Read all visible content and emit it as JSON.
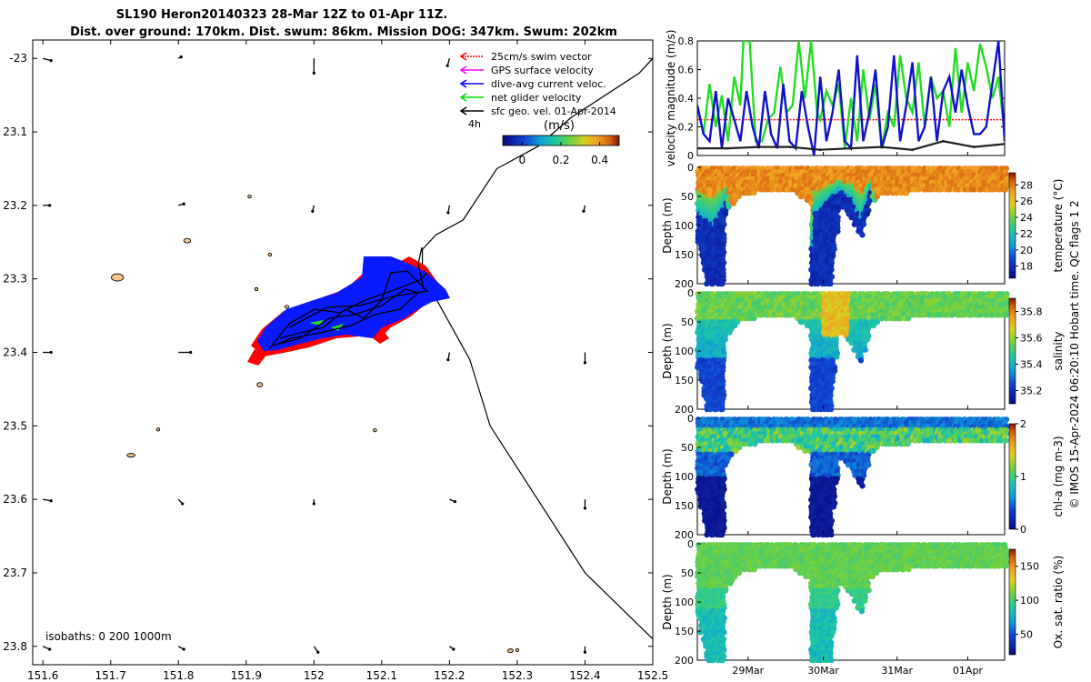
{
  "title": {
    "line1": "SL190 Heron20140323 28-Mar 12Z to 01-Apr 11Z.",
    "line2": "Dist. over ground: 170km. Dist. swum: 86km. Mission DOG: 347km. Swum: 202km"
  },
  "side_text": "© IMOS 15-Apr-2024 06:20:10 Hobart time. QC flags 1  2",
  "colors": {
    "swim": "#ff0000",
    "gps": "#ff00ff",
    "dive": "#0000ff",
    "net": "#00dd00",
    "sfc": "#000000",
    "land": "#f5c58a"
  },
  "chart_data": [
    {
      "type": "map",
      "name": "track-map",
      "xlim": [
        151.585,
        152.5
      ],
      "ylim": [
        -23.825,
        -22.975
      ],
      "x_ticks": [
        151.6,
        151.7,
        151.8,
        151.9,
        152,
        152.1,
        152.2,
        152.3,
        152.4,
        152.5
      ],
      "x_tick_labels": [
        "151.6",
        "151.7",
        "151.8",
        "151.9",
        "152",
        "152.1",
        "152.2",
        "152.3",
        "152.4",
        "152.5"
      ],
      "y_ticks": [
        -23,
        -23.1,
        -23.2,
        -23.3,
        -23.4,
        -23.5,
        -23.6,
        -23.7,
        -23.8
      ],
      "y_tick_labels": [
        "-23",
        "23.1",
        "23.2",
        "23.3",
        "23.4",
        "23.5",
        "23.6",
        "23.7",
        "23.8"
      ],
      "legend": [
        {
          "label": "25cm/s swim vector",
          "color": "#ff0000"
        },
        {
          "label": "GPS surface velocity",
          "color": "#ff00ff"
        },
        {
          "label": "dive-avg current veloc.",
          "color": "#0000ff"
        },
        {
          "label": "net glider velocity",
          "color": "#00dd00"
        },
        {
          "label": "sfc geo. vel. 01-Apr-2014",
          "color": "#000000"
        }
      ],
      "legend_note": "4h",
      "colorbar": {
        "title": "(m/s)",
        "ticks": [
          0,
          0.2,
          0.4
        ],
        "tick_labels": [
          "0",
          "0.2",
          "0.4"
        ],
        "range": [
          -0.1,
          0.5
        ]
      },
      "isobath_text": "isobaths: 0   200  1000m",
      "track_center": {
        "lon": 152.05,
        "lat": -23.35
      },
      "isobath_line": [
        {
          "lon": 152.5,
          "lat": -23.0
        },
        {
          "lon": 152.48,
          "lat": -23.02
        },
        {
          "lon": 152.38,
          "lat": -23.08
        },
        {
          "lon": 152.33,
          "lat": -23.12
        },
        {
          "lon": 152.27,
          "lat": -23.15
        },
        {
          "lon": 152.22,
          "lat": -23.22
        },
        {
          "lon": 152.18,
          "lat": -23.24
        },
        {
          "lon": 152.16,
          "lat": -23.26
        },
        {
          "lon": 152.16,
          "lat": -23.28
        },
        {
          "lon": 152.17,
          "lat": -23.31
        },
        {
          "lon": 152.2,
          "lat": -23.36
        },
        {
          "lon": 152.23,
          "lat": -23.41
        },
        {
          "lon": 152.26,
          "lat": -23.5
        },
        {
          "lon": 152.33,
          "lat": -23.6
        },
        {
          "lon": 152.4,
          "lat": -23.7
        },
        {
          "lon": 152.5,
          "lat": -23.79
        }
      ],
      "reefs": [
        {
          "lon": 151.71,
          "lat": -23.298,
          "w": 0.018,
          "h": 0.01
        },
        {
          "lon": 151.813,
          "lat": -23.248,
          "w": 0.01,
          "h": 0.006
        },
        {
          "lon": 151.73,
          "lat": -23.54,
          "w": 0.012,
          "h": 0.005
        },
        {
          "lon": 151.92,
          "lat": -23.444,
          "w": 0.008,
          "h": 0.006
        },
        {
          "lon": 152.29,
          "lat": -23.806,
          "w": 0.008,
          "h": 0.005
        },
        {
          "lon": 151.905,
          "lat": -23.188,
          "w": 0.004,
          "h": 0.004
        },
        {
          "lon": 151.935,
          "lat": -23.267,
          "w": 0.004,
          "h": 0.004
        },
        {
          "lon": 151.915,
          "lat": -23.314,
          "w": 0.004,
          "h": 0.004
        },
        {
          "lon": 152.09,
          "lat": -23.506,
          "w": 0.005,
          "h": 0.004
        },
        {
          "lon": 151.77,
          "lat": -23.505,
          "w": 0.004,
          "h": 0.004
        },
        {
          "lon": 152.057,
          "lat": -23.314,
          "w": 0.004,
          "h": 0.004
        },
        {
          "lon": 152.3,
          "lat": -23.805,
          "w": 0.004,
          "h": 0.004
        },
        {
          "lon": 151.96,
          "lat": -23.338,
          "w": 0.006,
          "h": 0.004
        }
      ],
      "geo_vectors": [
        {
          "lon": 151.6,
          "lat": -23.0,
          "u": 0.012,
          "v": -0.003
        },
        {
          "lon": 151.8,
          "lat": -23.0,
          "u": 0.004,
          "v": 0.002
        },
        {
          "lon": 152.0,
          "lat": -23.0,
          "u": 0.0,
          "v": -0.02
        },
        {
          "lon": 152.2,
          "lat": -23.0,
          "u": -0.003,
          "v": -0.01
        },
        {
          "lon": 151.6,
          "lat": -23.2,
          "u": 0.01,
          "v": 0.0
        },
        {
          "lon": 151.8,
          "lat": -23.2,
          "u": 0.008,
          "v": 0.002
        },
        {
          "lon": 152.0,
          "lat": -23.2,
          "u": -0.002,
          "v": -0.008
        },
        {
          "lon": 152.2,
          "lat": -23.2,
          "u": -0.002,
          "v": -0.01
        },
        {
          "lon": 152.4,
          "lat": -23.2,
          "u": -0.002,
          "v": -0.008
        },
        {
          "lon": 151.6,
          "lat": -23.4,
          "u": 0.012,
          "v": 0.0
        },
        {
          "lon": 151.8,
          "lat": -23.4,
          "u": 0.018,
          "v": 0.0
        },
        {
          "lon": 152.2,
          "lat": -23.4,
          "u": -0.002,
          "v": -0.01
        },
        {
          "lon": 152.4,
          "lat": -23.4,
          "u": 0.0,
          "v": -0.014
        },
        {
          "lon": 151.6,
          "lat": -23.6,
          "u": 0.012,
          "v": -0.002
        },
        {
          "lon": 151.8,
          "lat": -23.6,
          "u": 0.006,
          "v": -0.006
        },
        {
          "lon": 152.0,
          "lat": -23.6,
          "u": 0.0,
          "v": -0.006
        },
        {
          "lon": 152.2,
          "lat": -23.6,
          "u": 0.008,
          "v": -0.003
        },
        {
          "lon": 152.4,
          "lat": -23.6,
          "u": 0.0,
          "v": -0.012
        },
        {
          "lon": 151.6,
          "lat": -23.8,
          "u": 0.01,
          "v": -0.004
        },
        {
          "lon": 151.8,
          "lat": -23.8,
          "u": 0.008,
          "v": -0.004
        },
        {
          "lon": 152.0,
          "lat": -23.8,
          "u": 0.006,
          "v": -0.008
        },
        {
          "lon": 152.2,
          "lat": -23.8,
          "u": 0.006,
          "v": -0.004
        },
        {
          "lon": 152.4,
          "lat": -23.8,
          "u": 0.0,
          "v": -0.008
        }
      ]
    },
    {
      "type": "line",
      "name": "velocity-panel",
      "ylabel": "velocity magnitude (m/s)",
      "ylim": [
        0,
        0.8
      ],
      "y_ticks": [
        0,
        0.2,
        0.4,
        0.6,
        0.8
      ],
      "y_tick_labels": [
        "0",
        "0.2",
        "0.4",
        "0.6",
        "0.8"
      ],
      "xlim": [
        0,
        100
      ],
      "series": [
        {
          "name": "25cm/s swim vector",
          "color": "#ff0000",
          "x": [
            0,
            100
          ],
          "values": [
            0.25,
            0.25
          ]
        },
        {
          "name": "net glider velocity",
          "color": "#22dd22",
          "x": [
            0,
            2,
            4,
            6,
            8,
            10,
            12,
            14,
            15,
            17,
            19,
            21,
            23,
            25,
            27,
            29,
            31,
            33,
            35,
            37,
            39,
            40,
            42,
            44,
            46,
            48,
            50,
            52,
            54,
            56,
            58,
            60,
            62,
            64,
            66,
            68,
            70,
            72,
            74,
            76,
            78,
            80,
            82,
            84,
            86,
            88,
            90,
            92,
            94,
            96,
            98,
            100
          ],
          "values": [
            0.35,
            0.15,
            0.5,
            0.2,
            0.42,
            0.1,
            0.55,
            0.35,
            0.8,
            0.8,
            0.1,
            0.1,
            0.25,
            0.3,
            0.62,
            0.3,
            0.35,
            0.8,
            0.4,
            0.8,
            0.3,
            0.25,
            0.45,
            0.35,
            0.5,
            0.05,
            0.4,
            0.1,
            0.6,
            0.25,
            0.5,
            0.05,
            0.3,
            0.2,
            0.7,
            0.4,
            0.3,
            0.65,
            0.2,
            0.55,
            0.4,
            0.45,
            0.2,
            0.75,
            0.3,
            0.65,
            0.45,
            0.78,
            0.62,
            0.4,
            0.55,
            0.15
          ]
        },
        {
          "name": "dive-avg current veloc.",
          "color": "#1111cc",
          "x": [
            0,
            2,
            4,
            6,
            8,
            10,
            12,
            14,
            16,
            18,
            20,
            22,
            24,
            26,
            28,
            30,
            32,
            34,
            36,
            38,
            40,
            42,
            44,
            46,
            48,
            50,
            52,
            54,
            56,
            58,
            60,
            62,
            64,
            66,
            68,
            70,
            72,
            74,
            76,
            78,
            80,
            82,
            84,
            86,
            88,
            90,
            92,
            94,
            96,
            98,
            100
          ],
          "values": [
            0.35,
            0.15,
            0.1,
            0.45,
            0.05,
            0.4,
            0.25,
            0.1,
            0.45,
            0.2,
            0.05,
            0.45,
            0.15,
            0.05,
            0.5,
            0.1,
            0.05,
            0.45,
            0.2,
            0.0,
            0.55,
            0.1,
            0.3,
            0.6,
            0.1,
            0.05,
            0.7,
            0.1,
            0.3,
            0.6,
            0.05,
            0.2,
            0.7,
            0.1,
            0.35,
            0.65,
            0.1,
            0.2,
            0.55,
            0.1,
            0.45,
            0.55,
            0.3,
            0.6,
            0.35,
            0.15,
            0.15,
            0.2,
            0.5,
            0.8,
            0.1
          ]
        },
        {
          "name": "sfc geo. vel.",
          "color": "#222222",
          "x": [
            0,
            10,
            20,
            30,
            40,
            50,
            60,
            70,
            80,
            90,
            100
          ],
          "values": [
            0.05,
            0.05,
            0.06,
            0.06,
            0.04,
            0.05,
            0.06,
            0.04,
            0.1,
            0.06,
            0.08
          ]
        }
      ]
    },
    {
      "type": "heatmap",
      "name": "temperature-panel",
      "ylabel": "Depth (m)",
      "cblabel": "temperature (°C)",
      "ylim": [
        0,
        200
      ],
      "y_ticks": [
        0,
        50,
        100,
        150,
        200
      ],
      "y_tick_labels": [
        "0",
        "50",
        "100",
        "150",
        "200"
      ],
      "clim": [
        16.5,
        29.5
      ],
      "c_ticks": [
        18,
        20,
        22,
        24,
        26,
        28
      ],
      "c_tick_labels": [
        "18",
        "20",
        "22",
        "24",
        "26",
        "28"
      ],
      "surface_value": 27.2,
      "deep_value": 17.5,
      "x_ticks": [
        16.5,
        41,
        65,
        88
      ],
      "x_tick_labels": [
        "29Mar",
        "30Mar",
        "31Mar",
        "01Apr"
      ],
      "profile_depth": [
        {
          "x": 0,
          "depth": 130
        },
        {
          "x": 3,
          "depth": 200
        },
        {
          "x": 8,
          "depth": 200
        },
        {
          "x": 9,
          "depth": 80
        },
        {
          "x": 13,
          "depth": 50
        },
        {
          "x": 16,
          "depth": 45
        },
        {
          "x": 30,
          "depth": 40
        },
        {
          "x": 36,
          "depth": 60
        },
        {
          "x": 37,
          "depth": 200
        },
        {
          "x": 43,
          "depth": 200
        },
        {
          "x": 46,
          "depth": 70
        },
        {
          "x": 49,
          "depth": 80
        },
        {
          "x": 53,
          "depth": 120
        },
        {
          "x": 56,
          "depth": 60
        },
        {
          "x": 60,
          "depth": 45
        },
        {
          "x": 100,
          "depth": 40
        }
      ],
      "thermocline": [
        {
          "x": 0,
          "depth": 80
        },
        {
          "x": 5,
          "depth": 100
        },
        {
          "x": 9,
          "depth": 60
        },
        {
          "x": 14,
          "depth": 200
        },
        {
          "x": 36,
          "depth": 200
        },
        {
          "x": 38,
          "depth": 80
        },
        {
          "x": 42,
          "depth": 60
        },
        {
          "x": 46,
          "depth": 40
        },
        {
          "x": 50,
          "depth": 55
        },
        {
          "x": 53,
          "depth": 90
        },
        {
          "x": 56,
          "depth": 40
        },
        {
          "x": 60,
          "depth": 200
        },
        {
          "x": 100,
          "depth": 200
        }
      ]
    },
    {
      "type": "heatmap",
      "name": "salinity-panel",
      "ylabel": "Depth (m)",
      "cblabel": "salinity",
      "ylim": [
        0,
        200
      ],
      "y_ticks": [
        0,
        50,
        100,
        150,
        200
      ],
      "y_tick_labels": [
        "0",
        "50",
        "100",
        "150",
        "200"
      ],
      "clim": [
        35.1,
        35.9
      ],
      "c_ticks": [
        35.2,
        35.4,
        35.6,
        35.8
      ],
      "c_tick_labels": [
        "35.2",
        "35.4",
        "35.6",
        "35.8"
      ],
      "surface_value": 35.45,
      "deep_value": 35.22,
      "x_ticks": [
        16.5,
        41,
        65,
        88
      ],
      "x_tick_labels": [
        "29Mar",
        "30Mar",
        "31Mar",
        "01Apr"
      ]
    },
    {
      "type": "heatmap",
      "name": "chla-panel",
      "ylabel": "Depth (m)",
      "cblabel": "chl-a (mg m-3)",
      "ylim": [
        0,
        200
      ],
      "y_ticks": [
        0,
        50,
        100,
        150,
        200
      ],
      "y_tick_labels": [
        "0",
        "50",
        "100",
        "150",
        "200"
      ],
      "clim": [
        0,
        2
      ],
      "c_ticks": [
        0,
        1,
        2
      ],
      "c_tick_labels": [
        "0",
        "1",
        "2"
      ],
      "surface_value": 0.2,
      "deep_value": 0.05,
      "x_ticks": [
        16.5,
        41,
        65,
        88
      ],
      "x_tick_labels": [
        "29Mar",
        "30Mar",
        "31Mar",
        "01Apr"
      ]
    },
    {
      "type": "heatmap",
      "name": "oxygen-panel",
      "ylabel": "Depth (m)",
      "cblabel": "Ox. sat. ratio (%)",
      "ylim": [
        0,
        200
      ],
      "y_ticks": [
        0,
        50,
        100,
        150,
        200
      ],
      "y_tick_labels": [
        "0",
        "50",
        "100",
        "150",
        "200"
      ],
      "clim": [
        20,
        175
      ],
      "c_ticks": [
        50,
        100,
        150
      ],
      "c_tick_labels": [
        "50",
        "100",
        "150"
      ],
      "surface_value": 105,
      "deep_value": 70,
      "x_ticks": [
        16.5,
        41,
        65,
        88
      ],
      "x_tick_labels": [
        "29Mar",
        "30Mar",
        "31Mar",
        "01Apr"
      ]
    }
  ]
}
